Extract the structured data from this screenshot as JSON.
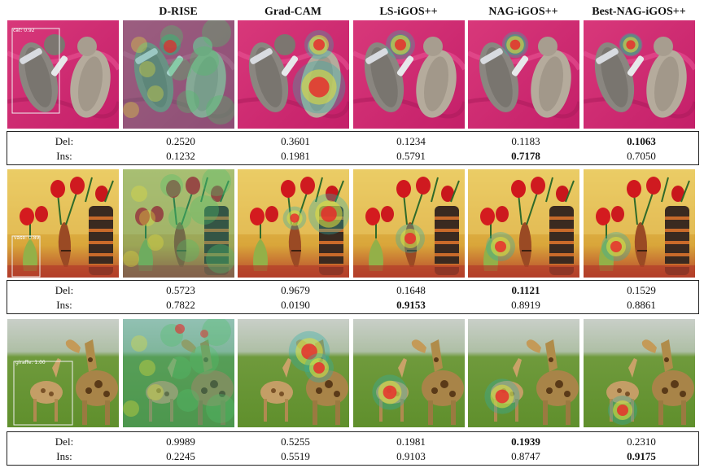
{
  "headers": [
    "D-RISE",
    "Grad-CAM",
    "LS-iGOS++",
    "NAG-iGOS++",
    "Best-NAG-iGOS++"
  ],
  "row_labels": [
    "Del:",
    "Ins:"
  ],
  "detections": [
    "cat: 0.92",
    "vase: 0.89",
    "giraffe: 1.00"
  ],
  "groups": [
    {
      "subject": "cat",
      "del": [
        "0.2520",
        "0.3601",
        "0.1234",
        "0.1183",
        "0.1063"
      ],
      "ins": [
        "0.1232",
        "0.1981",
        "0.5791",
        "0.7178",
        "0.7050"
      ],
      "bold_del": 4,
      "bold_ins": 3
    },
    {
      "subject": "vase",
      "del": [
        "0.5723",
        "0.9679",
        "0.1648",
        "0.1121",
        "0.1529"
      ],
      "ins": [
        "0.7822",
        "0.0190",
        "0.9153",
        "0.8919",
        "0.8861"
      ],
      "bold_del": 3,
      "bold_ins": 2
    },
    {
      "subject": "giraffe",
      "del": [
        "0.9989",
        "0.5255",
        "0.1981",
        "0.1939",
        "0.2310"
      ],
      "ins": [
        "0.2245",
        "0.5519",
        "0.9103",
        "0.8747",
        "0.9175"
      ],
      "bold_del": 3,
      "bold_ins": 4
    }
  ]
}
